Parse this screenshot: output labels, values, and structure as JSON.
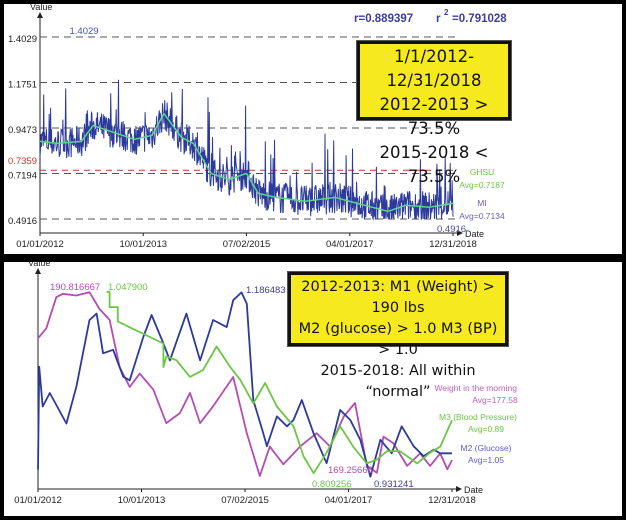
{
  "chart_data": [
    {
      "type": "line",
      "title": "",
      "xlabel": "Date",
      "ylabel": "Value",
      "stats": {
        "r": "r=0.889397",
        "r2_label": "r",
        "r2_sup": "2",
        "r2_value": "=0.791028"
      },
      "x_ticks": [
        {
          "label": "01/01/2012",
          "x": 2012.0
        },
        {
          "label": "10/01/2013",
          "x": 2013.75
        },
        {
          "label": "07/02/2015",
          "x": 2015.5
        },
        {
          "label": "04/01/2017",
          "x": 2017.25
        },
        {
          "label": "12/31/2018",
          "x": 2019.0
        }
      ],
      "y_ticks": [
        {
          "label": "1.4029",
          "y": 1.4029
        },
        {
          "label": "1.1751",
          "y": 1.1751
        },
        {
          "label": "0.9473",
          "y": 0.9473
        },
        {
          "label": "0.7194",
          "y": 0.7194
        },
        {
          "label": "0.4916",
          "y": 0.4916
        }
      ],
      "ref_line": {
        "label": "0.7359",
        "y": 0.7359,
        "color": "#c0392b"
      },
      "xlim": [
        2012.0,
        2019.0
      ],
      "ylim": [
        0.4916,
        1.4029
      ],
      "annotations": {
        "max": "1.4029",
        "min": "0.4916"
      },
      "series": [
        {
          "name": "MI",
          "avg_label": "Avg=0.7134",
          "color": "#2b3a9c",
          "noisy": true,
          "x": [
            2012.0,
            2012.3,
            2012.7,
            2012.9,
            2013.2,
            2013.6,
            2013.9,
            2014.1,
            2014.4,
            2014.6,
            2014.9,
            2015.2,
            2015.5,
            2015.7,
            2016.0,
            2016.5,
            2017.0,
            2017.5,
            2017.9,
            2018.2,
            2018.6,
            2019.0
          ],
          "y": [
            0.88,
            0.87,
            0.88,
            0.96,
            0.93,
            0.89,
            0.91,
            1.02,
            0.9,
            0.87,
            0.72,
            0.69,
            0.72,
            0.62,
            0.6,
            0.58,
            0.6,
            0.56,
            0.53,
            0.56,
            0.55,
            0.57
          ]
        },
        {
          "name": "GHSU",
          "avg_label": "Avg=0.7187",
          "color": "#5ed68a",
          "noisy": false,
          "x": [
            2012.0,
            2012.3,
            2012.7,
            2012.9,
            2013.2,
            2013.6,
            2013.9,
            2014.1,
            2014.4,
            2014.6,
            2014.9,
            2015.2,
            2015.5,
            2015.7,
            2016.0,
            2016.5,
            2017.0,
            2017.5,
            2017.9,
            2018.2,
            2018.6,
            2019.0
          ],
          "y": [
            0.88,
            0.87,
            0.88,
            0.96,
            0.93,
            0.89,
            0.91,
            1.02,
            0.9,
            0.87,
            0.72,
            0.69,
            0.72,
            0.62,
            0.6,
            0.58,
            0.6,
            0.56,
            0.53,
            0.56,
            0.55,
            0.57
          ]
        }
      ],
      "callout": [
        "1/1/2012-12/31/2018",
        "2012-2013 > 73.5%",
        "2015-2018 < 73.5%"
      ]
    },
    {
      "type": "line",
      "title": "",
      "xlabel": "Date",
      "ylabel": "Value",
      "x_ticks": [
        {
          "label": "01/01/2012",
          "x": 2012.0
        },
        {
          "label": "10/01/2013",
          "x": 2013.75
        },
        {
          "label": "07/02/2015",
          "x": 2015.5
        },
        {
          "label": "04/01/2017",
          "x": 2017.25
        },
        {
          "label": "12/31/2018",
          "x": 2019.0
        }
      ],
      "xlim": [
        2012.0,
        2019.0
      ],
      "series": [
        {
          "name": "Weight in the morning",
          "avg_label": "Avg=177.58",
          "color": "#b44cb4",
          "ylim": [
            169.26,
            190.82
          ],
          "max_label": "190.816667",
          "min_label": "169.25666",
          "x": [
            2012.0,
            2012.14,
            2012.31,
            2012.42,
            2012.65,
            2012.87,
            2013.04,
            2013.21,
            2013.38,
            2013.55,
            2013.72,
            2013.95,
            2014.17,
            2014.4,
            2014.57,
            2014.74,
            2014.96,
            2015.3,
            2015.53,
            2015.75,
            2015.92,
            2016.15,
            2016.43,
            2016.71,
            2016.94,
            2017.17,
            2017.36,
            2017.56,
            2017.73,
            2017.84,
            2018.01,
            2018.24,
            2018.46,
            2018.63,
            2018.8,
            2018.92,
            2019.0
          ],
          "y": [
            185.3,
            186.5,
            190.2,
            190.6,
            190.4,
            190.8,
            188.8,
            187.5,
            181.9,
            179.5,
            181.1,
            179.2,
            175.2,
            176.4,
            178.8,
            175.2,
            177.2,
            180.7,
            174.0,
            168.9,
            172.4,
            170.3,
            172.4,
            174.0,
            172.4,
            176.0,
            177.6,
            170.1,
            169.3,
            173.6,
            172.8,
            170.1,
            171.6,
            170.1,
            171.6,
            169.7,
            170.8
          ]
        },
        {
          "name": "M2 (Glucose)",
          "avg_label": "Avg=1.05",
          "color": "#2b3a9c",
          "ylim": [
            0.9312,
            1.1865
          ],
          "max_label": "1.186483",
          "min_label": "0.931241",
          "x": [
            2012.0,
            2012.02,
            2012.08,
            2012.2,
            2012.48,
            2012.65,
            2012.87,
            2012.99,
            2013.1,
            2013.27,
            2013.44,
            2013.55,
            2013.78,
            2013.92,
            2014.12,
            2014.23,
            2014.51,
            2014.74,
            2014.96,
            2015.19,
            2015.3,
            2015.44,
            2015.53,
            2015.64,
            2015.81,
            2015.87,
            2016.04,
            2016.21,
            2016.32,
            2016.46,
            2016.66,
            2016.88,
            2017.11,
            2017.28,
            2017.45,
            2017.62,
            2017.79,
            2017.98,
            2018.15,
            2018.35,
            2018.52,
            2018.69,
            2018.8,
            2019.0
          ],
          "y": [
            0.936,
            1.081,
            1.025,
            1.044,
            1.001,
            1.053,
            1.147,
            1.156,
            1.1,
            1.105,
            1.067,
            1.062,
            1.123,
            1.154,
            1.114,
            1.09,
            1.156,
            1.09,
            1.147,
            1.137,
            1.175,
            1.186,
            1.17,
            1.034,
            0.987,
            0.969,
            1.011,
            0.997,
            1.006,
            1.034,
            0.987,
            0.945,
            1.02,
            1.006,
            0.978,
            0.926,
            0.978,
            0.959,
            0.997,
            0.969,
            0.955,
            0.964,
            0.959,
            0.959
          ]
        },
        {
          "name": "M3 (Blood Pressure)",
          "avg_label": "Avg=0.89",
          "color": "#6cc644",
          "ylim": [
            0.8093,
            1.0479
          ],
          "max_label": "1.047900",
          "min_label": "0.809256",
          "x": [
            2013.16,
            2013.21,
            2013.21,
            2013.35,
            2013.35,
            2014.12,
            2014.12,
            2014.17,
            2014.34,
            2014.57,
            2014.79,
            2015.02,
            2015.25,
            2015.42,
            2015.64,
            2015.84,
            2016.04,
            2016.32,
            2016.49,
            2016.66,
            2016.88,
            2017.11,
            2017.33,
            2017.56,
            2017.73,
            2017.9,
            2018.12,
            2018.41,
            2018.63,
            2018.8,
            2019.0
          ],
          "y": [
            1.048,
            1.048,
            1.028,
            1.028,
            1.009,
            0.98,
            0.949,
            0.963,
            0.958,
            0.936,
            0.945,
            0.976,
            0.949,
            0.932,
            0.901,
            0.928,
            0.897,
            0.871,
            0.831,
            0.809,
            0.836,
            0.871,
            0.844,
            0.822,
            0.827,
            0.838,
            0.838,
            0.822,
            0.836,
            0.844,
            0.879
          ]
        }
      ],
      "callout": [
        "2012-2013:  M1 (Weight) > 190 lbs",
        "M2 (glucose) > 1.0  M3 (BP) > 1.0",
        "2015-2018:  All within “normal”"
      ]
    }
  ]
}
